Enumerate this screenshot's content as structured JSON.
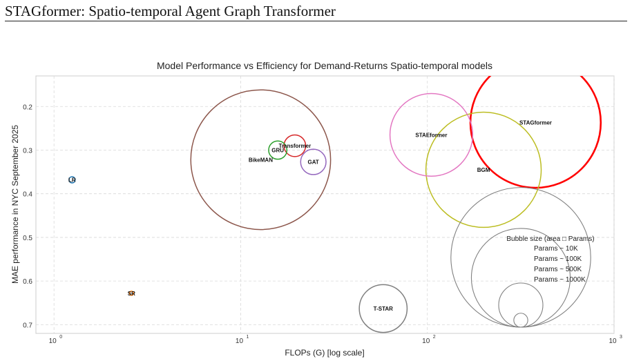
{
  "header": {
    "title": "STAGformer: Spatio-temporal Agent Graph Transformer"
  },
  "chart_data": {
    "type": "scatter",
    "title": "Model Performance vs Efficiency for Demand-Returns Spatio-temporal models",
    "xlabel": "FLOPs (G) [log scale]",
    "ylabel": "MAE performance in NYC September 2025",
    "x_scale": "log",
    "xlim": [
      0.8,
      1000
    ],
    "ylim": [
      0.72,
      0.13
    ],
    "y_inverted": true,
    "grid": true,
    "x_ticks": [
      {
        "value": 1,
        "base": "10",
        "exp": "0"
      },
      {
        "value": 10,
        "base": "10",
        "exp": "1"
      },
      {
        "value": 100,
        "base": "10",
        "exp": "2"
      },
      {
        "value": 1000,
        "base": "10",
        "exp": "3"
      }
    ],
    "y_ticks": [
      "0.2",
      "0.3",
      "0.4",
      "0.5",
      "0.6",
      "0.7"
    ],
    "points": [
      {
        "label": "LR",
        "flops": 1.25,
        "mae": 0.368,
        "params_k": 2,
        "color": "#1f77b4",
        "highlight": false
      },
      {
        "label": "SR",
        "flops": 2.6,
        "mae": 0.628,
        "params_k": 0.3,
        "color": "#ff7f0e",
        "highlight": false
      },
      {
        "label": "BikeMAN",
        "flops": 12.8,
        "mae": 0.322,
        "params_k": 1000,
        "color": "#8c564b",
        "highlight": false
      },
      {
        "label": "GRU",
        "flops": 15.8,
        "mae": 0.3,
        "params_k": 17,
        "color": "#2ca02c",
        "highlight": false
      },
      {
        "label": "Transformer",
        "flops": 19.5,
        "mae": 0.29,
        "params_k": 24,
        "color": "#d62728",
        "highlight": false
      },
      {
        "label": "GAT",
        "flops": 24.5,
        "mae": 0.327,
        "params_k": 33,
        "color": "#9467bd",
        "highlight": false
      },
      {
        "label": "T-STAR",
        "flops": 58,
        "mae": 0.663,
        "params_k": 117,
        "color": "#7f7f7f",
        "highlight": false
      },
      {
        "label": "STAEformer",
        "flops": 105,
        "mae": 0.265,
        "params_k": 350,
        "color": "#e377c2",
        "highlight": false
      },
      {
        "label": "BGM",
        "flops": 200,
        "mae": 0.345,
        "params_k": 680,
        "color": "#bcbd22",
        "highlight": false
      },
      {
        "label": "STAGformer",
        "flops": 380,
        "mae": 0.237,
        "params_k": 870,
        "color": "#ff0000",
        "highlight": true
      }
    ],
    "size_legend": {
      "title": "Bubble size (area □ Params)",
      "color": "#808080",
      "entries": [
        {
          "label": "Params ~ 10K",
          "params_k": 10
        },
        {
          "label": "Params ~ 100K",
          "params_k": 100
        },
        {
          "label": "Params ~ 500K",
          "params_k": 500
        },
        {
          "label": "Params ~ 1000K",
          "params_k": 1000
        }
      ]
    }
  }
}
